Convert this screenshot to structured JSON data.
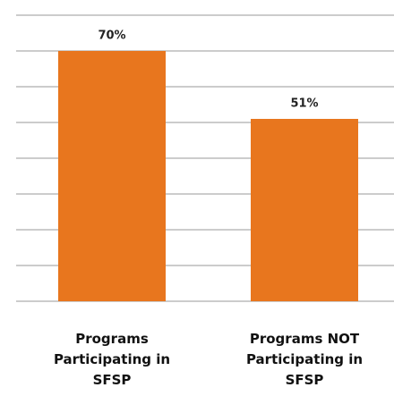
{
  "chart_data": {
    "type": "bar",
    "categories": [
      "Programs Participating in SFSP",
      "Programs NOT Participating in SFSP"
    ],
    "values": [
      70,
      51
    ],
    "value_labels": [
      "70%",
      "51%"
    ],
    "color": "#e8761e",
    "ylim": [
      0,
      80
    ],
    "yticks": [
      0,
      10,
      20,
      30,
      40,
      50,
      60,
      70,
      80
    ],
    "grid": true
  }
}
